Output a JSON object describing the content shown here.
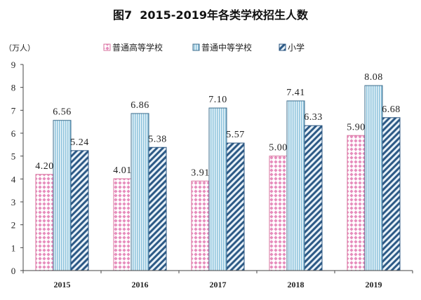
{
  "chart_data": {
    "type": "bar",
    "title": "图7  2015-2019年各类学校招生人数",
    "ylabel": "（万人）",
    "categories": [
      "2015",
      "2016",
      "2017",
      "2018",
      "2019"
    ],
    "series": [
      {
        "name": "普通高等学校",
        "values": [
          4.2,
          4.01,
          3.91,
          5.0,
          5.9
        ],
        "labels": [
          "4.20",
          "4.01",
          "3.91",
          "5.00",
          "5.90"
        ],
        "color": "#d9739f"
      },
      {
        "name": "普通中等学校",
        "values": [
          6.56,
          6.86,
          7.1,
          7.41,
          8.08
        ],
        "labels": [
          "6.56",
          "6.86",
          "7.10",
          "7.41",
          "8.08"
        ],
        "color": "#3e6e8e"
      },
      {
        "name": "小学",
        "values": [
          5.24,
          5.38,
          5.57,
          6.33,
          6.68
        ],
        "labels": [
          "5.24",
          "5.38",
          "5.57",
          "6.33",
          "6.68"
        ],
        "color": "#2b5680"
      }
    ],
    "yticks": [
      0,
      1,
      2,
      3,
      4,
      5,
      6,
      7,
      8,
      9
    ],
    "ylim": [
      0,
      9
    ],
    "grid": false,
    "legend": "top"
  }
}
